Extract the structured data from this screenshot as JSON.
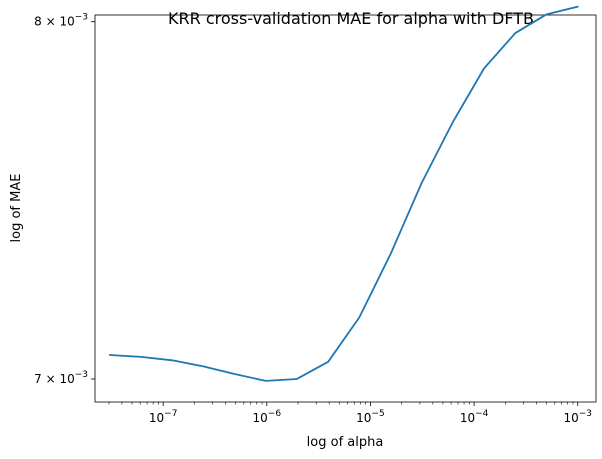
{
  "chart_data": {
    "type": "line",
    "title": "KRR cross-validation MAE for alpha with DFTB",
    "xlabel": "log of alpha",
    "ylabel": "log of MAE",
    "xscale": "log",
    "yscale": "log",
    "xlim": [
      2.2e-08,
      0.0015
    ],
    "ylim": [
      0.00694,
      0.00802
    ],
    "grid": false,
    "x_ticks": [
      {
        "value": 1e-07,
        "mantissa": "10",
        "exp": "−7"
      },
      {
        "value": 1e-06,
        "mantissa": "10",
        "exp": "−6"
      },
      {
        "value": 1e-05,
        "mantissa": "10",
        "exp": "−5"
      },
      {
        "value": 0.0001,
        "mantissa": "10",
        "exp": "−4"
      },
      {
        "value": 0.001,
        "mantissa": "10",
        "exp": "−3"
      }
    ],
    "y_ticks": [
      {
        "value": 0.007,
        "mantissa": "7 × 10",
        "exp": "−3"
      },
      {
        "value": 0.008,
        "mantissa": "8 × 10",
        "exp": "−3"
      }
    ],
    "series": [
      {
        "color": "#1f77b4",
        "x": [
          3.05e-08,
          6.1e-08,
          1.22e-07,
          2.44e-07,
          4.88e-07,
          9.77e-07,
          1.95e-06,
          3.91e-06,
          7.81e-06,
          1.56e-05,
          3.13e-05,
          6.25e-05,
          0.000125,
          0.00025,
          0.0005,
          0.001
        ],
        "y": [
          0.007063,
          0.007058,
          0.007049,
          0.007033,
          0.007013,
          0.006995,
          0.007,
          0.007045,
          0.007163,
          0.007334,
          0.007533,
          0.007706,
          0.007862,
          0.007966,
          0.008022,
          0.008045
        ]
      }
    ]
  }
}
